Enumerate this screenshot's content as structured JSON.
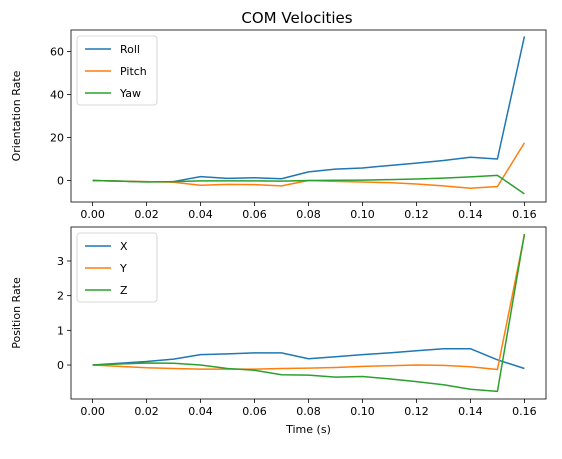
{
  "figure": {
    "title": "COM Velocities"
  },
  "chart_data": [
    {
      "type": "line",
      "title": "COM Velocities",
      "xlabel": "",
      "ylabel": "Orientation Rate",
      "xlim": [
        -0.008,
        0.168
      ],
      "ylim": [
        -10,
        70
      ],
      "x_ticks": [
        0.0,
        0.02,
        0.04,
        0.06,
        0.08,
        0.1,
        0.12,
        0.14,
        0.16
      ],
      "x_tick_labels": [
        "0.00",
        "0.02",
        "0.04",
        "0.06",
        "0.08",
        "0.10",
        "0.12",
        "0.14",
        "0.16"
      ],
      "y_ticks": [
        0,
        20,
        40,
        60
      ],
      "y_tick_labels": [
        "0",
        "20",
        "40",
        "60"
      ],
      "grid": false,
      "legend_position": "upper-left",
      "x": [
        0.0,
        0.01,
        0.02,
        0.03,
        0.04,
        0.05,
        0.06,
        0.07,
        0.08,
        0.09,
        0.1,
        0.11,
        0.12,
        0.13,
        0.14,
        0.15,
        0.16
      ],
      "series": [
        {
          "name": "Roll",
          "color": "#1f77b4",
          "values": [
            0.0,
            -0.3,
            -0.6,
            -0.5,
            1.8,
            1.0,
            1.3,
            0.8,
            4.0,
            5.3,
            5.8,
            7.0,
            8.1,
            9.3,
            10.8,
            10.0,
            67.0
          ]
        },
        {
          "name": "Pitch",
          "color": "#ff7f0e",
          "values": [
            0.0,
            -0.3,
            -0.5,
            -0.8,
            -2.2,
            -1.8,
            -1.9,
            -2.5,
            0.0,
            -0.4,
            -0.7,
            -1.0,
            -1.6,
            -2.5,
            -3.6,
            -2.8,
            17.5
          ]
        },
        {
          "name": "Yaw",
          "color": "#2ca02c",
          "values": [
            0.0,
            -0.3,
            -0.7,
            -0.5,
            -0.2,
            -0.2,
            -0.2,
            -0.3,
            0.0,
            0.1,
            0.2,
            0.4,
            0.7,
            1.1,
            1.7,
            2.4,
            -6.2
          ]
        }
      ]
    },
    {
      "type": "line",
      "title": "",
      "xlabel": "Time (s)",
      "ylabel": "Position Rate",
      "xlim": [
        -0.008,
        0.168
      ],
      "ylim": [
        -0.98,
        3.98
      ],
      "x_ticks": [
        0.0,
        0.02,
        0.04,
        0.06,
        0.08,
        0.1,
        0.12,
        0.14,
        0.16
      ],
      "x_tick_labels": [
        "0.00",
        "0.02",
        "0.04",
        "0.06",
        "0.08",
        "0.10",
        "0.12",
        "0.14",
        "0.16"
      ],
      "y_ticks": [
        0,
        1,
        2,
        3
      ],
      "y_tick_labels": [
        "0",
        "1",
        "2",
        "3"
      ],
      "grid": false,
      "legend_position": "upper-left",
      "x": [
        0.0,
        0.01,
        0.02,
        0.03,
        0.04,
        0.05,
        0.06,
        0.07,
        0.08,
        0.09,
        0.1,
        0.11,
        0.12,
        0.13,
        0.14,
        0.15,
        0.16
      ],
      "series": [
        {
          "name": "X",
          "color": "#1f77b4",
          "values": [
            0.0,
            0.05,
            0.1,
            0.17,
            0.3,
            0.32,
            0.35,
            0.35,
            0.18,
            0.24,
            0.3,
            0.35,
            0.41,
            0.47,
            0.47,
            0.15,
            -0.1
          ]
        },
        {
          "name": "Y",
          "color": "#ff7f0e",
          "values": [
            0.0,
            -0.04,
            -0.08,
            -0.1,
            -0.12,
            -0.12,
            -0.12,
            -0.1,
            -0.09,
            -0.07,
            -0.04,
            -0.02,
            0.0,
            -0.01,
            -0.05,
            -0.13,
            3.75
          ]
        },
        {
          "name": "Z",
          "color": "#2ca02c",
          "values": [
            0.0,
            0.03,
            0.06,
            0.05,
            0.0,
            -0.1,
            -0.15,
            -0.28,
            -0.29,
            -0.35,
            -0.33,
            -0.4,
            -0.48,
            -0.57,
            -0.7,
            -0.76,
            3.78
          ]
        }
      ]
    }
  ]
}
